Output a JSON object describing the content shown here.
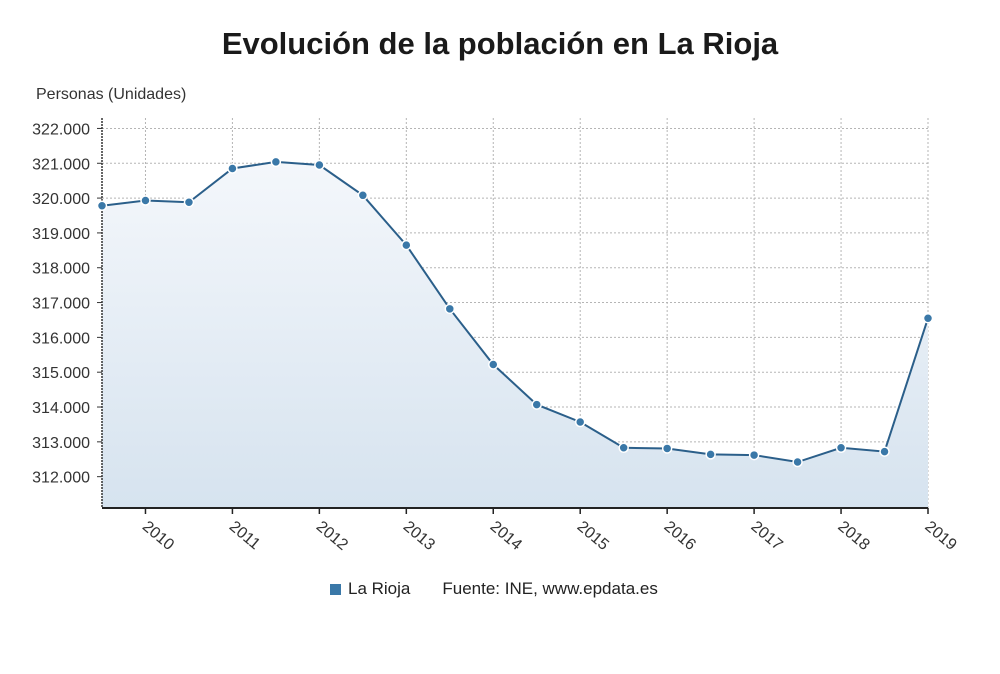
{
  "title": "Evolución de la población en La Rioja",
  "legend": {
    "series_label": "La Rioja",
    "source": "Fuente: INE, www.epdata.es"
  },
  "colors": {
    "line": "#2b5f8a",
    "marker": "#3a78a8",
    "area_top": "#f4f7fb",
    "area_bottom": "#d6e3ef",
    "grid": "#b5b5b5"
  },
  "chart_data": {
    "type": "area",
    "title": "Evolución de la población en La Rioja",
    "ylabel": "Personas (Unidades)",
    "xlabel": "",
    "ylim": [
      311100,
      322300
    ],
    "y_ticks": [
      312000,
      313000,
      314000,
      315000,
      316000,
      317000,
      318000,
      319000,
      320000,
      321000,
      322000
    ],
    "y_tick_labels": [
      "312.000",
      "313.000",
      "314.000",
      "315.000",
      "316.000",
      "317.000",
      "318.000",
      "319.000",
      "320.000",
      "321.000",
      "322.000"
    ],
    "x_tick_labels": [
      "2010",
      "2011",
      "2012",
      "2013",
      "2014",
      "2015",
      "2016",
      "2017",
      "2018",
      "2019"
    ],
    "x": [
      "2009-07",
      "2010-01",
      "2010-07",
      "2011-01",
      "2011-07",
      "2012-01",
      "2012-07",
      "2013-01",
      "2013-07",
      "2014-01",
      "2014-07",
      "2015-01",
      "2015-07",
      "2016-01",
      "2016-07",
      "2017-01",
      "2017-07",
      "2018-01",
      "2018-07",
      "2019-01"
    ],
    "grid": true,
    "legend_position": "bottom",
    "series": [
      {
        "name": "La Rioja",
        "values": [
          319780,
          319930,
          319880,
          320850,
          321040,
          320950,
          320080,
          318650,
          316820,
          315220,
          314070,
          313570,
          312830,
          312810,
          312640,
          312620,
          312420,
          312830,
          312720,
          316550
        ]
      }
    ]
  }
}
